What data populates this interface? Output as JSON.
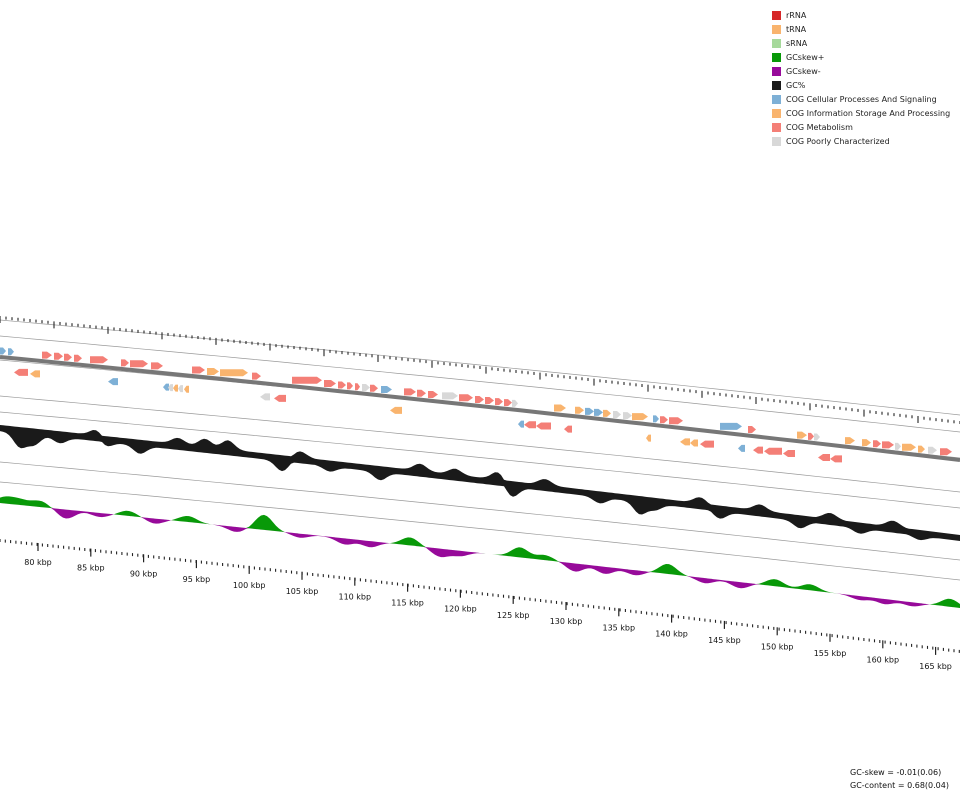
{
  "legend": [
    {
      "label": "rRNA",
      "color": "#d62728"
    },
    {
      "label": "tRNA",
      "color": "#f9b46e"
    },
    {
      "label": "sRNA",
      "color": "#a6d99b"
    },
    {
      "label": "GCskew+",
      "color": "#089908"
    },
    {
      "label": "GCskew-",
      "color": "#970a9a"
    },
    {
      "label": "GC%",
      "color": "#1a1a1a"
    },
    {
      "label": "COG Cellular Processes And Signaling",
      "color": "#7eb0d6"
    },
    {
      "label": "COG Information Storage And Processing",
      "color": "#f9b46e"
    },
    {
      "label": "COG Metabolism",
      "color": "#f47f77"
    },
    {
      "label": "COG Poorly Characterized",
      "color": "#d8d8d8"
    }
  ],
  "axis": {
    "unit": "kbp",
    "labels": [
      "80 kbp",
      "85 kbp",
      "90 kbp",
      "95 kbp",
      "100 kbp",
      "105 kbp",
      "110 kbp",
      "115 kbp",
      "120 kbp",
      "125 kbp",
      "130 kbp",
      "135 kbp",
      "140 kbp",
      "145 kbp",
      "150 kbp",
      "155 kbp",
      "160 kbp",
      "165 kbp"
    ]
  },
  "stats": {
    "gc_skew": "GC-skew = -0.01(0.06)",
    "gc_content": "GC-content = 0.68(0.04)"
  }
}
